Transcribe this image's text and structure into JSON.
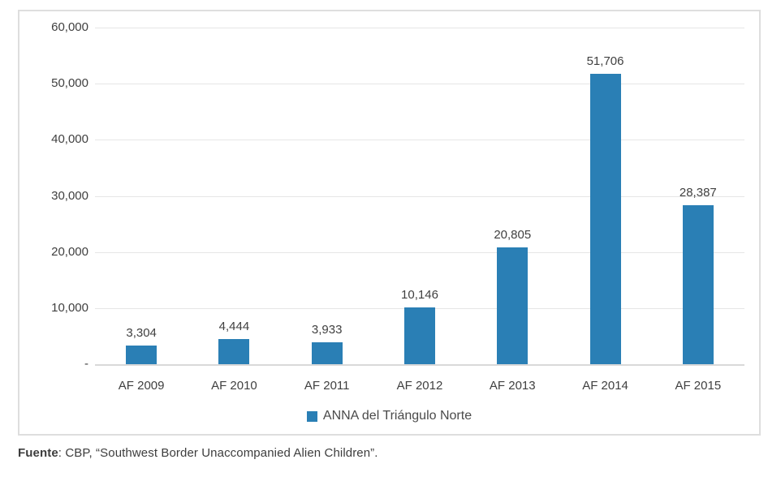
{
  "chart_data": {
    "type": "bar",
    "categories": [
      "AF 2009",
      "AF 2010",
      "AF 2011",
      "AF 2012",
      "AF 2013",
      "AF 2014",
      "AF 2015"
    ],
    "values": [
      3304,
      4444,
      3933,
      10146,
      20805,
      51706,
      28387
    ],
    "value_labels": [
      "3,304",
      "4,444",
      "3,933",
      "10,146",
      "20,805",
      "51,706",
      "28,387"
    ],
    "y_ticks": [
      "60,000",
      "50,000",
      "40,000",
      "30,000",
      "20,000",
      "10,000",
      "-"
    ],
    "ylim": [
      0,
      60000
    ],
    "y_step": 10000,
    "title": "",
    "xlabel": "",
    "ylabel": "",
    "grid": "horizontal gridlines on",
    "legend": "ANNA del Triángulo Norte",
    "legend_position": "bottom",
    "bar_color": "#2a7fb5"
  },
  "source": {
    "label": "Fuente",
    "text": ": CBP, “Southwest Border Unaccompanied Alien Children”."
  }
}
